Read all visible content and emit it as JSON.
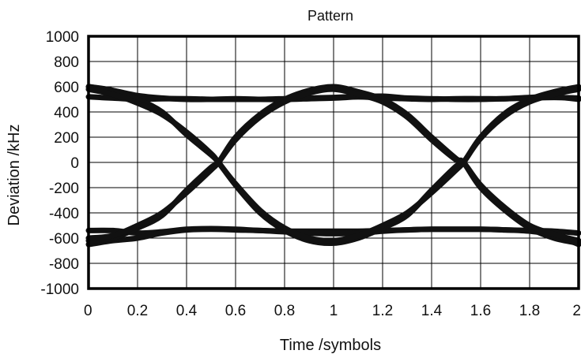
{
  "chart_data": {
    "type": "line",
    "title": "Pattern",
    "xlabel": "Time /symbols",
    "ylabel": "Deviation /kHz",
    "xlim": [
      0,
      2
    ],
    "ylim": [
      -1000,
      1000
    ],
    "x_ticks": [
      "0",
      "0.2",
      "0.4",
      "0.6",
      "0.8",
      "1",
      "1.2",
      "1.4",
      "1.6",
      "1.8",
      "2"
    ],
    "y_ticks": [
      "1000",
      "800",
      "600",
      "400",
      "200",
      "0",
      "-200",
      "-400",
      "-600",
      "-800",
      "-1000"
    ],
    "grid": true,
    "legend": "none",
    "series": [
      {
        "x": [
          0,
          0.1,
          0.2,
          0.3,
          0.4,
          0.5,
          0.6,
          0.7,
          0.8,
          0.9,
          1,
          1.1,
          1.2,
          1.3,
          1.4,
          1.5,
          1.6,
          1.7,
          1.8,
          1.9,
          2
        ],
        "y": [
          600,
          570,
          530,
          510,
          500,
          500,
          505,
          500,
          500,
          505,
          510,
          520,
          525,
          510,
          505,
          500,
          500,
          505,
          510,
          515,
          510
        ]
      },
      {
        "x": [
          0,
          0.1,
          0.2,
          0.3,
          0.4,
          0.5,
          0.6,
          0.7,
          0.8,
          0.9,
          1,
          1.1,
          1.2,
          1.3,
          1.4,
          1.5,
          1.6,
          1.7,
          1.8,
          1.9,
          2
        ],
        "y": [
          520,
          510,
          500,
          505,
          505,
          500,
          500,
          500,
          505,
          510,
          515,
          520,
          510,
          505,
          500,
          505,
          505,
          505,
          515,
          520,
          500
        ]
      },
      {
        "x": [
          0,
          0.1,
          0.2,
          0.3,
          0.4,
          0.5,
          0.6,
          0.7,
          0.8,
          0.9,
          1,
          1.1,
          1.2,
          1.3,
          1.4,
          1.5,
          1.6,
          1.7,
          1.8,
          1.9,
          2
        ],
        "y": [
          -540,
          -540,
          -560,
          -550,
          -530,
          -525,
          -530,
          -540,
          -545,
          -545,
          -545,
          -545,
          -540,
          -535,
          -530,
          -530,
          -530,
          -535,
          -540,
          -545,
          -560
        ]
      },
      {
        "x": [
          0,
          0.1,
          0.2,
          0.3,
          0.4,
          0.5,
          0.6,
          0.7,
          0.8,
          0.9,
          1,
          1.1,
          1.2,
          1.3,
          1.4,
          1.5,
          1.6,
          1.7,
          1.8,
          1.9,
          2
        ],
        "y": [
          -650,
          -620,
          -600,
          -560,
          -535,
          -530,
          -535,
          -540,
          -550,
          -560,
          -565,
          -560,
          -545,
          -535,
          -530,
          -530,
          -530,
          -535,
          -545,
          -575,
          -650
        ]
      },
      {
        "x": [
          0,
          0.1,
          0.2,
          0.3,
          0.4,
          0.5,
          0.53,
          0.6,
          0.7,
          0.8,
          0.9,
          1,
          1.1,
          1.2,
          1.3,
          1.4,
          1.5,
          1.53,
          1.6,
          1.7,
          1.8,
          1.9,
          2
        ],
        "y": [
          600,
          570,
          500,
          400,
          220,
          60,
          0,
          -180,
          -400,
          -540,
          -620,
          -640,
          -600,
          -520,
          -420,
          -220,
          -30,
          0,
          200,
          390,
          500,
          560,
          600
        ]
      },
      {
        "x": [
          0,
          0.1,
          0.2,
          0.3,
          0.4,
          0.5,
          0.53,
          0.6,
          0.7,
          0.8,
          0.9,
          1,
          1.1,
          1.2,
          1.3,
          1.4,
          1.5,
          1.53,
          1.6,
          1.7,
          1.8,
          1.9,
          2
        ],
        "y": [
          -620,
          -600,
          -520,
          -420,
          -220,
          -40,
          0,
          200,
          380,
          500,
          570,
          600,
          560,
          500,
          380,
          200,
          30,
          0,
          -200,
          -380,
          -520,
          -600,
          -640
        ]
      },
      {
        "x": [
          0,
          0.1,
          0.2,
          0.3,
          0.4,
          0.5,
          0.53,
          0.6,
          0.7,
          0.8,
          0.9,
          1,
          1.1,
          1.2,
          1.3,
          1.4,
          1.5,
          1.53,
          1.6,
          1.7,
          1.8,
          1.9,
          2
        ],
        "y": [
          580,
          540,
          470,
          380,
          240,
          70,
          0,
          -170,
          -380,
          -520,
          -600,
          -620,
          -580,
          -500,
          -400,
          -240,
          -60,
          0,
          190,
          370,
          480,
          540,
          580
        ]
      },
      {
        "x": [
          0,
          0.1,
          0.2,
          0.3,
          0.4,
          0.5,
          0.53,
          0.6,
          0.7,
          0.8,
          0.9,
          1,
          1.1,
          1.2,
          1.3,
          1.4,
          1.5,
          1.53,
          1.6,
          1.7,
          1.8,
          1.9,
          2
        ],
        "y": [
          -600,
          -580,
          -500,
          -400,
          -240,
          -60,
          0,
          180,
          360,
          480,
          550,
          580,
          540,
          480,
          360,
          180,
          20,
          0,
          -180,
          -360,
          -500,
          -570,
          -620
        ]
      }
    ]
  }
}
